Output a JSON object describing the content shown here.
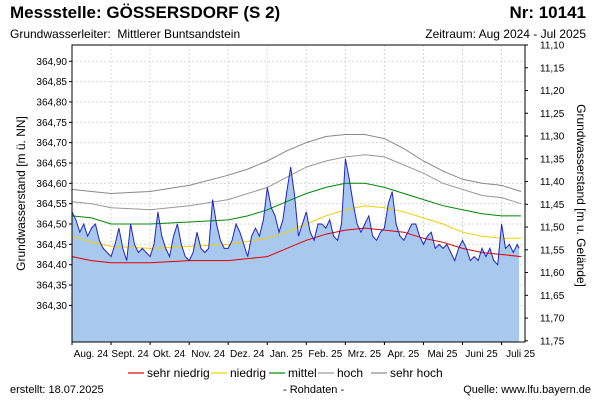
{
  "header": {
    "title": "Messstelle: GÖSSERSDORF (S 2)",
    "number": "Nr: 10141",
    "aquifer_label": "Grundwasserleiter:",
    "aquifer": "Mittlerer Buntsandstein",
    "period": "Zeitraum: Aug 2024 - Jul 2025"
  },
  "footer": {
    "created": "erstellt:  18.07.2025",
    "note": "- Rohdaten -",
    "source": "Quelle:  www.lfu.bayern.de"
  },
  "colors": {
    "area": "#a8c8ee",
    "measured": "#1f25c8",
    "sehr_niedrig": "#e00000",
    "niedrig": "#f0d000",
    "mittel": "#008800",
    "hoch": "#999999",
    "sehr_hoch": "#888888",
    "grid": "#d8d8d8"
  },
  "chart_data": {
    "type": "area",
    "ylabel": "Grundwasserstand [m ü. NN]",
    "ylabel_right": "Grundwasserstand [m u. Gelände]",
    "ylim": [
      364.21,
      364.94
    ],
    "ylim_right": [
      11.1,
      11.75
    ],
    "y_ticks": [
      "364,90",
      "364,85",
      "364,80",
      "364,75",
      "364,70",
      "364,65",
      "364,60",
      "364,55",
      "364,50",
      "364,45",
      "364,40",
      "364,35",
      "364,30"
    ],
    "y_ticks_right": [
      "11,10",
      "11,15",
      "11,20",
      "11,25",
      "11,30",
      "11,35",
      "11,40",
      "11,45",
      "11,50",
      "11,55",
      "11,60",
      "11,65",
      "11,70",
      "11,75"
    ],
    "x_ticks": [
      "Aug. 24",
      "Sept. 24",
      "Okt. 24",
      "Nov. 24",
      "Dez. 24",
      "Jan. 25",
      "Feb. 25",
      "Mrz. 25",
      "Apr. 25",
      "Mai 25",
      "Juni 25",
      "Juli 25"
    ],
    "legend": [
      {
        "key": "sehr_niedrig",
        "label": "sehr niedrig"
      },
      {
        "key": "niedrig",
        "label": "niedrig"
      },
      {
        "key": "mittel",
        "label": "mittel"
      },
      {
        "key": "hoch",
        "label": "hoch"
      },
      {
        "key": "sehr_hoch",
        "label": "sehr hoch"
      }
    ],
    "reference_lines": {
      "sehr_niedrig": [
        [
          0,
          364.42
        ],
        [
          0.5,
          364.41
        ],
        [
          1,
          364.405
        ],
        [
          2,
          364.405
        ],
        [
          3,
          364.41
        ],
        [
          4,
          364.41
        ],
        [
          5,
          364.42
        ],
        [
          5.5,
          364.44
        ],
        [
          6,
          364.46
        ],
        [
          6.5,
          364.475
        ],
        [
          7,
          364.485
        ],
        [
          7.5,
          364.49
        ],
        [
          8,
          364.485
        ],
        [
          8.5,
          364.48
        ],
        [
          9,
          364.465
        ],
        [
          9.5,
          364.455
        ],
        [
          10,
          364.44
        ],
        [
          10.5,
          364.43
        ],
        [
          11,
          364.425
        ],
        [
          11.5,
          364.42
        ]
      ],
      "niedrig": [
        [
          0,
          364.47
        ],
        [
          0.5,
          364.455
        ],
        [
          1,
          364.445
        ],
        [
          2,
          364.44
        ],
        [
          3,
          364.445
        ],
        [
          4,
          364.45
        ],
        [
          5,
          364.465
        ],
        [
          5.5,
          364.48
        ],
        [
          6,
          364.5
        ],
        [
          6.5,
          364.52
        ],
        [
          7,
          364.535
        ],
        [
          7.5,
          364.545
        ],
        [
          8,
          364.54
        ],
        [
          8.5,
          364.53
        ],
        [
          9,
          364.515
        ],
        [
          9.5,
          364.5
        ],
        [
          10,
          364.48
        ],
        [
          10.5,
          364.47
        ],
        [
          11,
          364.465
        ],
        [
          11.5,
          364.465
        ]
      ],
      "mittel": [
        [
          0,
          364.52
        ],
        [
          0.5,
          364.515
        ],
        [
          1,
          364.5
        ],
        [
          2,
          364.5
        ],
        [
          3,
          364.505
        ],
        [
          4,
          364.51
        ],
        [
          4.5,
          364.52
        ],
        [
          5,
          364.535
        ],
        [
          5.5,
          364.555
        ],
        [
          6,
          364.575
        ],
        [
          6.5,
          364.59
        ],
        [
          7,
          364.6
        ],
        [
          7.5,
          364.6
        ],
        [
          8,
          364.59
        ],
        [
          8.5,
          364.575
        ],
        [
          9,
          364.56
        ],
        [
          9.5,
          364.545
        ],
        [
          10,
          364.535
        ],
        [
          10.5,
          364.525
        ],
        [
          11,
          364.52
        ],
        [
          11.5,
          364.52
        ]
      ],
      "hoch": [
        [
          0,
          364.555
        ],
        [
          0.5,
          364.55
        ],
        [
          1,
          364.54
        ],
        [
          2,
          364.535
        ],
        [
          3,
          364.545
        ],
        [
          4,
          364.56
        ],
        [
          4.5,
          364.575
        ],
        [
          5,
          364.59
        ],
        [
          5.5,
          364.615
        ],
        [
          6,
          364.64
        ],
        [
          6.5,
          364.655
        ],
        [
          7,
          364.665
        ],
        [
          7.5,
          364.67
        ],
        [
          8,
          364.665
        ],
        [
          8.5,
          364.645
        ],
        [
          9,
          364.625
        ],
        [
          9.5,
          364.6
        ],
        [
          10,
          364.585
        ],
        [
          10.5,
          364.57
        ],
        [
          11,
          364.565
        ],
        [
          11.5,
          364.55
        ]
      ],
      "sehr_hoch": [
        [
          0,
          364.585
        ],
        [
          0.5,
          364.58
        ],
        [
          1,
          364.575
        ],
        [
          2,
          364.58
        ],
        [
          3,
          364.595
        ],
        [
          4,
          364.62
        ],
        [
          4.5,
          364.635
        ],
        [
          5,
          364.655
        ],
        [
          5.5,
          364.68
        ],
        [
          6,
          364.7
        ],
        [
          6.5,
          364.715
        ],
        [
          7,
          364.72
        ],
        [
          7.5,
          364.72
        ],
        [
          8,
          364.71
        ],
        [
          8.5,
          364.685
        ],
        [
          9,
          364.655
        ],
        [
          9.5,
          364.63
        ],
        [
          10,
          364.61
        ],
        [
          10.5,
          364.6
        ],
        [
          11,
          364.595
        ],
        [
          11.5,
          364.58
        ]
      ]
    },
    "series": [
      {
        "key": "measured",
        "x": [
          0,
          0.1,
          0.2,
          0.3,
          0.4,
          0.5,
          0.6,
          0.7,
          0.8,
          0.9,
          1.0,
          1.1,
          1.2,
          1.3,
          1.4,
          1.5,
          1.6,
          1.7,
          1.8,
          1.9,
          2.0,
          2.1,
          2.2,
          2.3,
          2.4,
          2.5,
          2.6,
          2.7,
          2.8,
          2.9,
          3.0,
          3.1,
          3.2,
          3.3,
          3.4,
          3.5,
          3.6,
          3.7,
          3.8,
          3.9,
          4.0,
          4.1,
          4.2,
          4.3,
          4.4,
          4.5,
          4.6,
          4.7,
          4.8,
          4.9,
          5.0,
          5.1,
          5.2,
          5.3,
          5.4,
          5.5,
          5.6,
          5.7,
          5.8,
          5.9,
          6.0,
          6.1,
          6.2,
          6.3,
          6.4,
          6.5,
          6.6,
          6.7,
          6.8,
          6.9,
          7.0,
          7.1,
          7.2,
          7.3,
          7.4,
          7.5,
          7.6,
          7.7,
          7.8,
          7.9,
          8.0,
          8.1,
          8.2,
          8.3,
          8.4,
          8.5,
          8.6,
          8.7,
          8.8,
          8.9,
          9.0,
          9.1,
          9.2,
          9.3,
          9.4,
          9.5,
          9.6,
          9.7,
          9.8,
          9.9,
          10.0,
          10.1,
          10.2,
          10.3,
          10.4,
          10.5,
          10.6,
          10.7,
          10.8,
          10.9,
          11.0,
          11.1,
          11.2,
          11.3,
          11.4,
          11.45
        ],
        "values": [
          364.53,
          364.51,
          364.48,
          364.5,
          364.47,
          364.49,
          364.5,
          364.46,
          364.44,
          364.43,
          364.42,
          364.45,
          364.49,
          364.44,
          364.41,
          364.5,
          364.45,
          364.43,
          364.44,
          364.43,
          364.42,
          364.45,
          364.53,
          364.47,
          364.44,
          364.42,
          364.47,
          364.5,
          364.45,
          364.42,
          364.41,
          364.43,
          364.48,
          364.44,
          364.43,
          364.44,
          364.56,
          364.5,
          364.46,
          364.44,
          364.44,
          364.46,
          364.5,
          364.48,
          364.45,
          364.42,
          364.47,
          364.49,
          364.47,
          364.51,
          364.59,
          364.54,
          364.52,
          364.48,
          364.51,
          364.58,
          364.64,
          364.57,
          364.47,
          364.5,
          364.53,
          364.48,
          364.46,
          364.5,
          364.5,
          364.49,
          364.51,
          364.47,
          364.46,
          364.5,
          364.66,
          364.61,
          364.55,
          364.5,
          364.48,
          364.5,
          364.52,
          364.47,
          364.46,
          364.48,
          364.49,
          364.55,
          364.58,
          364.5,
          364.47,
          364.46,
          364.48,
          364.5,
          364.5,
          364.47,
          364.45,
          364.47,
          364.48,
          364.44,
          364.45,
          364.44,
          364.45,
          364.43,
          364.41,
          364.44,
          364.46,
          364.44,
          364.41,
          364.42,
          364.41,
          364.44,
          364.42,
          364.44,
          364.41,
          364.4,
          364.5,
          364.44,
          364.45,
          364.43,
          364.45,
          364.44
        ]
      }
    ]
  }
}
